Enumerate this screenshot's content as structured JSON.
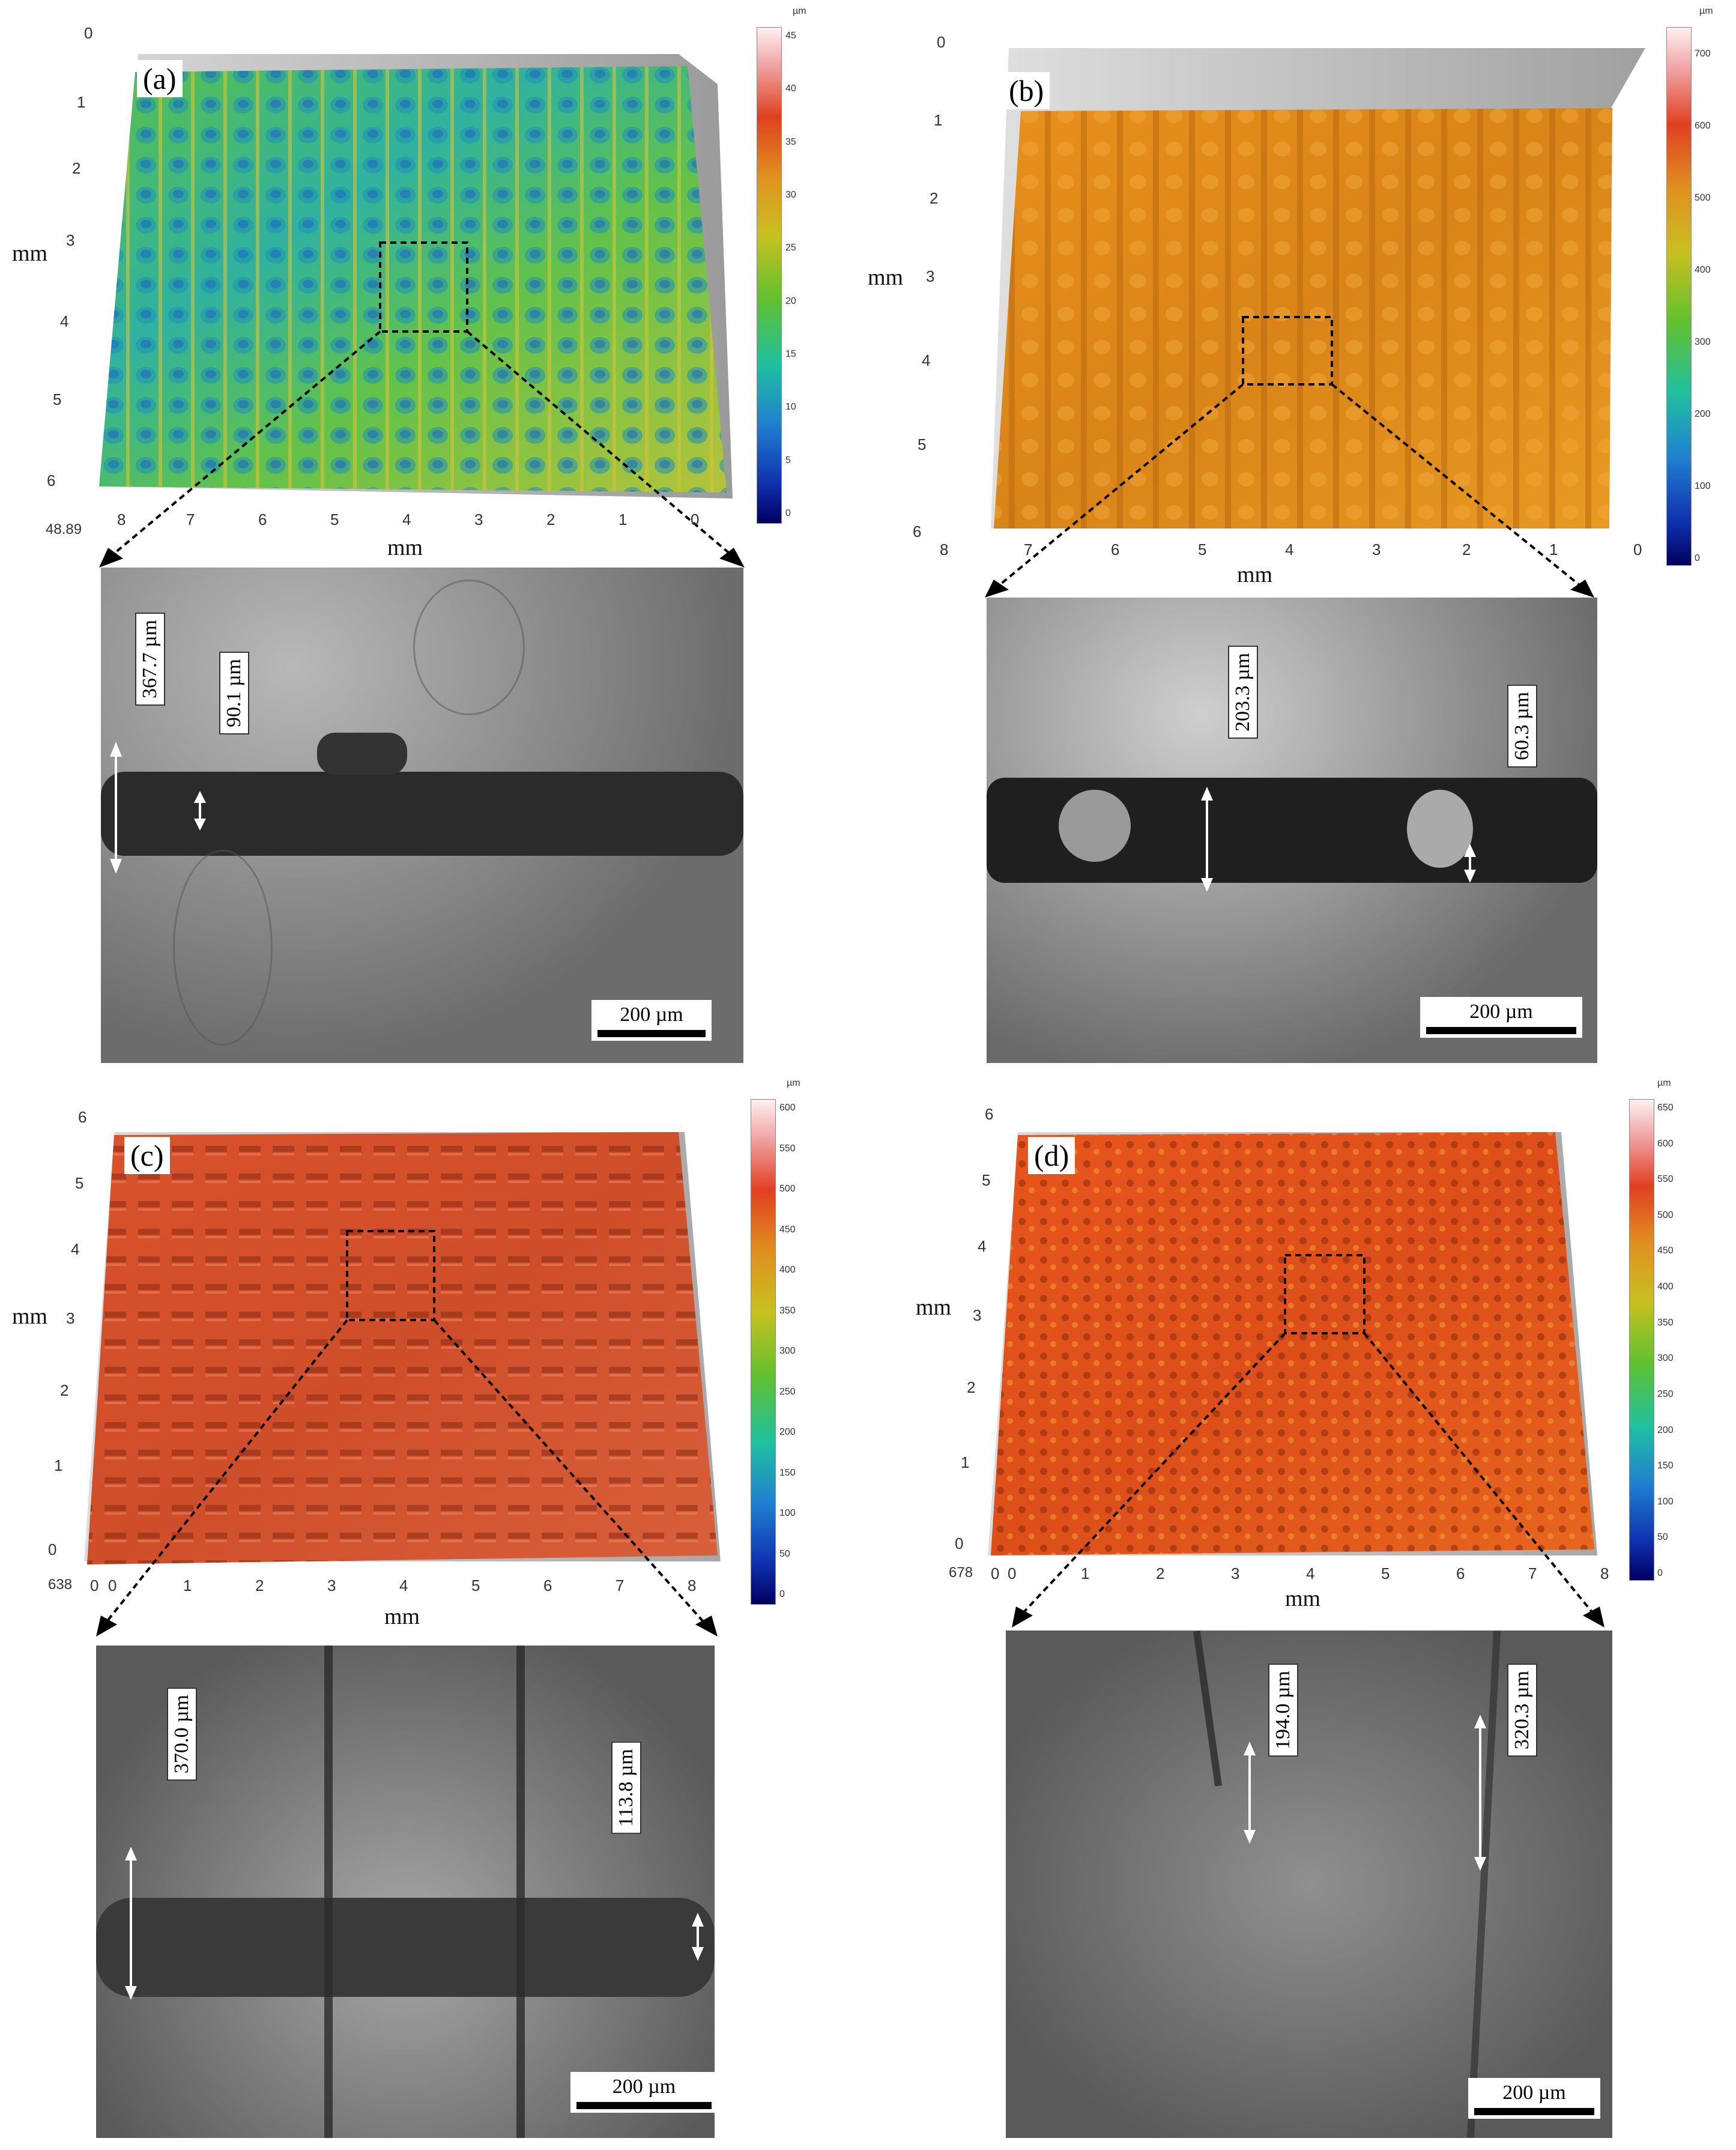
{
  "panels": [
    {
      "label": "(a)",
      "z_label": "48.89",
      "colorbar": {
        "unit": "µm",
        "ticks": [
          "45",
          "40",
          "35",
          "30",
          "25",
          "20",
          "15",
          "10",
          "5",
          "0"
        ]
      },
      "y_ticks": [
        "0",
        "1",
        "2",
        "3",
        "4",
        "5",
        "6"
      ],
      "x_ticks": [
        "8",
        "7",
        "6",
        "5",
        "4",
        "3",
        "2",
        "1",
        "0"
      ],
      "x_axis_label": "mm",
      "y_axis_label": "mm",
      "measurements": [
        "367.7 µm",
        "90.1 µm"
      ],
      "scale_bar": "200 µm"
    },
    {
      "label": "(b)",
      "colorbar": {
        "unit": "µm",
        "ticks": [
          "700",
          "600",
          "500",
          "400",
          "300",
          "200",
          "100",
          "0"
        ]
      },
      "y_ticks": [
        "0",
        "1",
        "2",
        "3",
        "4",
        "5",
        "6"
      ],
      "x_ticks": [
        "8",
        "7",
        "6",
        "5",
        "4",
        "3",
        "2",
        "1",
        "0"
      ],
      "x_axis_label": "mm",
      "y_axis_label": "mm",
      "measurements": [
        "203.3 µm",
        "60.3 µm"
      ],
      "scale_bar": "200 µm"
    },
    {
      "label": "(c)",
      "z_label": "638",
      "colorbar": {
        "unit": "µm",
        "ticks": [
          "600",
          "550",
          "500",
          "450",
          "400",
          "350",
          "300",
          "250",
          "200",
          "150",
          "100",
          "50",
          "0"
        ]
      },
      "y_ticks": [
        "6",
        "5",
        "4",
        "3",
        "2",
        "1",
        "0"
      ],
      "x_ticks": [
        "0",
        "0",
        "1",
        "2",
        "3",
        "4",
        "5",
        "6",
        "7",
        "8"
      ],
      "x_axis_label": "mm",
      "y_axis_label": "mm",
      "measurements": [
        "370.0 µm",
        "113.8 µm"
      ],
      "scale_bar": "200 µm"
    },
    {
      "label": "(d)",
      "z_label": "678",
      "colorbar": {
        "unit": "µm",
        "ticks": [
          "650",
          "600",
          "550",
          "500",
          "450",
          "400",
          "350",
          "300",
          "250",
          "200",
          "150",
          "100",
          "50",
          "0"
        ]
      },
      "y_ticks": [
        "6",
        "5",
        "4",
        "3",
        "2",
        "1",
        "0"
      ],
      "x_ticks": [
        "0",
        "0",
        "1",
        "2",
        "3",
        "4",
        "5",
        "6",
        "7",
        "8"
      ],
      "x_axis_label": "mm",
      "y_axis_label": "mm",
      "measurements": [
        "194.0 µm",
        "320.3 µm"
      ],
      "scale_bar": "200 µm"
    }
  ]
}
